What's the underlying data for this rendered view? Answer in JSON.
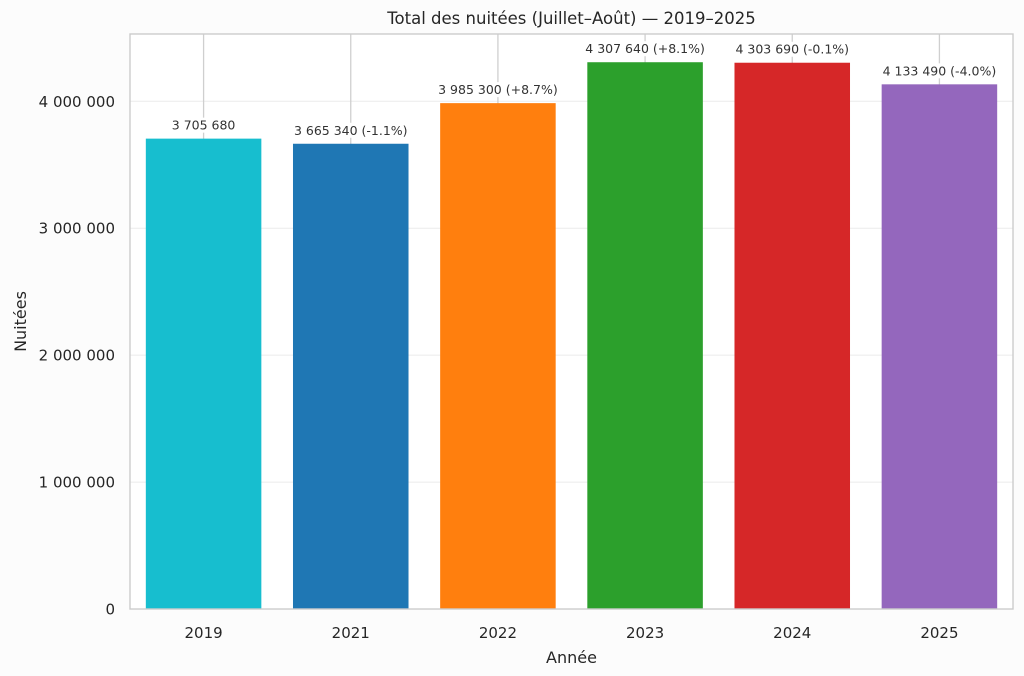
{
  "chart_data": {
    "type": "bar",
    "title": "Total des nuitées (Juillet–Août) — 2019–2025",
    "xlabel": "Année",
    "ylabel": "Nuitées",
    "categories": [
      "2019",
      "2021",
      "2022",
      "2023",
      "2024",
      "2025"
    ],
    "values": [
      3705680,
      3665340,
      3985300,
      4307640,
      4303690,
      4133490
    ],
    "data_labels": [
      "3 705 680",
      "3 665 340 (-1.1%)",
      "3 985 300 (+8.7%)",
      "4 307 640 (+8.1%)",
      "4 303 690 (-0.1%)",
      "4 133 490 (-4.0%)"
    ],
    "colors": [
      "#17becf",
      "#1f77b4",
      "#ff7f0e",
      "#2ca02c",
      "#d62728",
      "#9467bd"
    ],
    "ylim": [
      0,
      4530000
    ],
    "yticks": [
      0,
      1000000,
      2000000,
      3000000,
      4000000
    ],
    "ytick_labels": [
      "0",
      "1 000 000",
      "2 000 000",
      "3 000 000",
      "4 000 000"
    ],
    "grid": true,
    "legend": "none"
  }
}
